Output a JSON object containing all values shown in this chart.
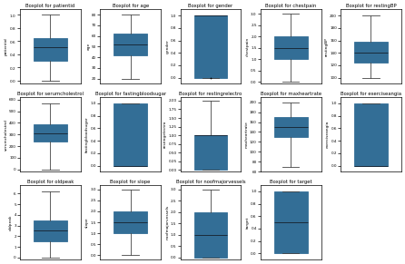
{
  "variables": [
    {
      "name": "patientid",
      "title": "Boxplot for patientid",
      "whislo": 0.0,
      "q1": 0.3,
      "med": 0.5,
      "q3": 0.65,
      "whishi": 1.0,
      "fliers": [],
      "ylim": [
        -0.05,
        1.08
      ],
      "yticks_sci": true
    },
    {
      "name": "age",
      "title": "Boxplot for age",
      "whislo": 20,
      "q1": 42,
      "med": 52,
      "q3": 62,
      "whishi": 80,
      "fliers": [],
      "ylim": [
        15,
        85
      ]
    },
    {
      "name": "gender",
      "title": "Boxplot for gender",
      "whislo": 0.0,
      "q1": 0.0,
      "med": 1.0,
      "q3": 1.0,
      "whishi": 1.0,
      "fliers": [
        0.0
      ],
      "ylim": [
        -0.1,
        1.1
      ]
    },
    {
      "name": "chestpain",
      "title": "Boxplot for chestpain",
      "whislo": 0.0,
      "q1": 1.0,
      "med": 1.5,
      "q3": 2.0,
      "whishi": 3.0,
      "fliers": [],
      "ylim": [
        -0.1,
        3.2
      ]
    },
    {
      "name": "restingBP",
      "title": "Boxplot for restingBP",
      "whislo": 100,
      "q1": 125,
      "med": 140,
      "q3": 158,
      "whishi": 200,
      "fliers": [],
      "ylim": [
        90,
        210
      ]
    },
    {
      "name": "serumcholestrol",
      "title": "Boxplot for serumcholestrol",
      "whislo": 0,
      "q1": 240,
      "med": 310,
      "q3": 385,
      "whishi": 565,
      "fliers": [],
      "ylim": [
        -20,
        620
      ]
    },
    {
      "name": "fastingbloodsugar",
      "title": "Boxplot for fastingbloodsugar",
      "whislo": 0.0,
      "q1": 0.0,
      "med": 0.0,
      "q3": 1.0,
      "whishi": 1.0,
      "fliers": [],
      "ylim": [
        -0.1,
        1.1
      ]
    },
    {
      "name": "restingelectro",
      "title": "Boxplot for restingrelectro",
      "whislo": 0.0,
      "q1": 0.0,
      "med": 1.0,
      "q3": 1.0,
      "whishi": 2.0,
      "fliers": [],
      "ylim": [
        -0.05,
        2.1
      ]
    },
    {
      "name": "maxheartrate",
      "title": "Boxplot for maxheartrate",
      "whislo": 70,
      "q1": 130,
      "med": 150,
      "q3": 170,
      "whishi": 200,
      "fliers": [],
      "ylim": [
        60,
        210
      ]
    },
    {
      "name": "exerciseangia",
      "title": "Boxplot for exerciseangia",
      "whislo": 0.0,
      "q1": 0.0,
      "med": 0.0,
      "q3": 1.0,
      "whishi": 1.0,
      "fliers": [],
      "ylim": [
        -0.1,
        1.1
      ]
    },
    {
      "name": "oldpeak",
      "title": "Boxplot for oldpeak",
      "whislo": 0.0,
      "q1": 1.5,
      "med": 2.5,
      "q3": 3.5,
      "whishi": 6.2,
      "fliers": [],
      "ylim": [
        -0.2,
        6.8
      ]
    },
    {
      "name": "slope",
      "title": "Boxplot for slope",
      "whislo": 0.0,
      "q1": 1.0,
      "med": 1.5,
      "q3": 2.0,
      "whishi": 3.0,
      "fliers": [],
      "ylim": [
        -0.2,
        3.2
      ]
    },
    {
      "name": "noofmajorvessels",
      "title": "Boxplot for noofmajorvessels",
      "whislo": 0.0,
      "q1": 0.0,
      "med": 1.0,
      "q3": 2.0,
      "whishi": 3.0,
      "fliers": [],
      "ylim": [
        -0.1,
        3.2
      ]
    },
    {
      "name": "target",
      "title": "Boxplot for target",
      "whislo": 0.0,
      "q1": 0.0,
      "med": 0.5,
      "q3": 1.0,
      "whishi": 1.0,
      "fliers": [],
      "ylim": [
        -0.1,
        1.1
      ]
    }
  ],
  "box_color": "#336e96",
  "median_color": "#1a2a3a",
  "whisker_color": "#444444",
  "cap_color": "#444444",
  "flier_color": "black",
  "n_cols": 5,
  "figsize": [
    4.46,
    2.91
  ],
  "dpi": 100
}
